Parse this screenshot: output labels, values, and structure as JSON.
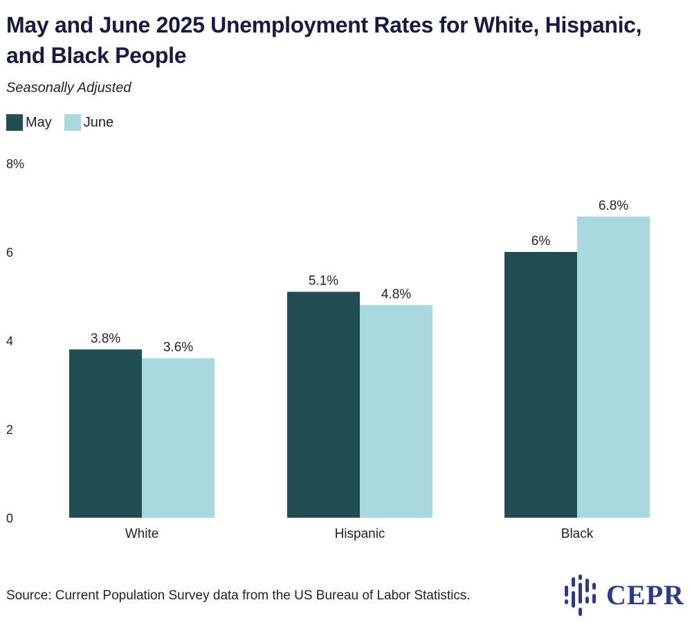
{
  "header": {
    "title": "May and June 2025 Unemployment Rates for White, Hispanic, and Black People",
    "subtitle": "Seasonally Adjusted"
  },
  "legend": {
    "items": [
      {
        "label": "May",
        "color": "#214e52"
      },
      {
        "label": "June",
        "color": "#a9d9de"
      }
    ]
  },
  "chart_data": {
    "type": "bar",
    "categories": [
      "White",
      "Hispanic",
      "Black"
    ],
    "series": [
      {
        "name": "May",
        "values": [
          3.8,
          5.1,
          6.0
        ],
        "labels": [
          "3.8%",
          "5.1%",
          "6%"
        ],
        "color": "#214e52"
      },
      {
        "name": "June",
        "values": [
          3.6,
          4.8,
          6.8
        ],
        "labels": [
          "3.6%",
          "4.8%",
          "6.8%"
        ],
        "color": "#a9d9de"
      }
    ],
    "ylim": [
      0,
      8
    ],
    "yticks": [
      {
        "value": 0,
        "label": "0"
      },
      {
        "value": 2,
        "label": "2"
      },
      {
        "value": 4,
        "label": "4"
      },
      {
        "value": 6,
        "label": "6"
      },
      {
        "value": 8,
        "label": "8%"
      }
    ],
    "title": "May and June 2025 Unemployment Rates for White, Hispanic, and Black People",
    "subtitle": "Seasonally Adjusted",
    "xlabel": "",
    "ylabel": "",
    "grid": false,
    "legend_position": "top-left"
  },
  "footer": {
    "source": "Source: Current Population Survey data from the US Bureau of Labor Statistics.",
    "logo_text": "CEPR",
    "logo_color": "#2a3a8f"
  }
}
